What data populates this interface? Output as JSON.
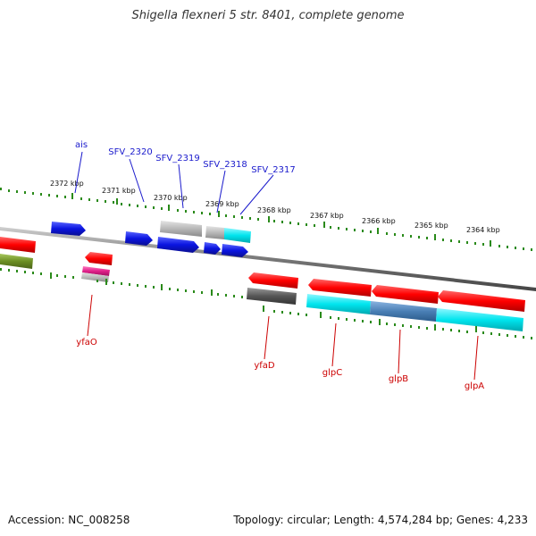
{
  "title": "Shigella flexneri 5 str. 8401, complete genome",
  "footer": {
    "accession": "Accession: NC_008258",
    "topology": "Topology: circular; Length: 4,574,284 bp; Genes: 4,233"
  },
  "ticks": [
    "2372 kbp",
    "2371 kbp",
    "2370 kbp",
    "2369 kbp",
    "2368 kbp",
    "2367 kbp",
    "2366 kbp",
    "2365 kbp",
    "2364 kbp"
  ],
  "gene_labels_top": [
    "ais",
    "SFV_2320",
    "SFV_2319",
    "SFV_2318",
    "SFV_2317"
  ],
  "gene_labels_bottom": [
    "yfaO",
    "yfaD",
    "glpC",
    "glpB",
    "glpA"
  ],
  "colors": {
    "blue": "#0a14e0",
    "red": "#ff0000",
    "gray": "#b8b8b8",
    "dark_gray": "#555555",
    "cyan": "#00e5ee",
    "olive": "#6b8e23",
    "pink": "#e0208a",
    "steel": "#4a7fb5",
    "tick_green": "#2a8a1a",
    "label_blue": "#1a1acc",
    "label_red": "#cc0000"
  }
}
